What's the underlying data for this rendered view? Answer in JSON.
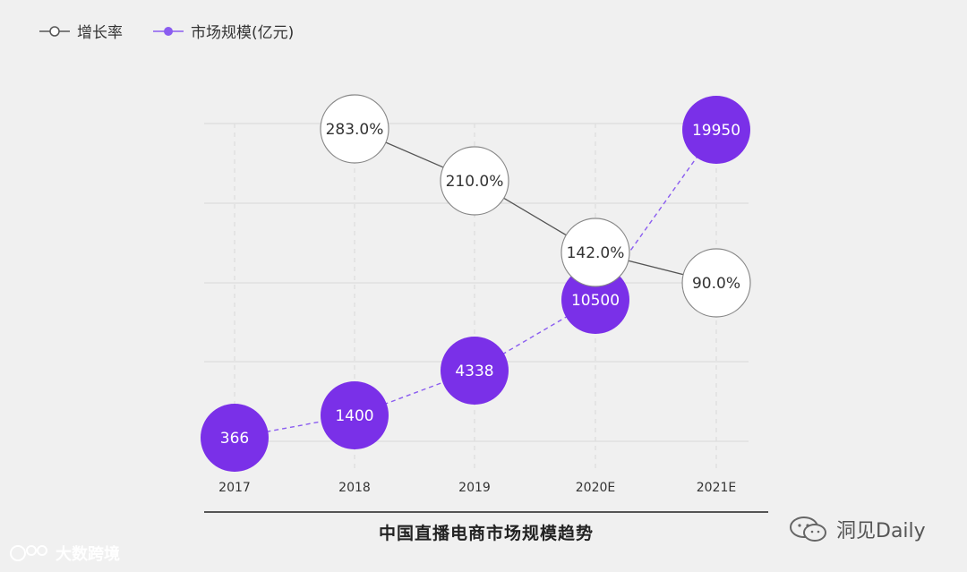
{
  "legend": {
    "growth_label": "增长率",
    "market_label": "市场规模(亿元)"
  },
  "caption": "中国直播电商市场规模趋势",
  "watermarks": {
    "bottom_right": "洞见Daily",
    "bottom_left": "大数跨境"
  },
  "colors": {
    "market": "#7a30e8",
    "growth_fill": "#ffffff",
    "growth_stroke": "#888888",
    "market_line": "#8a5cf0",
    "growth_line": "#555555",
    "grid": "#dddddd"
  },
  "chart_data": {
    "type": "line",
    "categories": [
      "2017",
      "2018",
      "2019",
      "2020E",
      "2021E"
    ],
    "series": [
      {
        "name": "增长率",
        "values": [
          null,
          283.0,
          210.0,
          142.0,
          90.0
        ],
        "labels": [
          "",
          "283.0%",
          "210.0%",
          "142.0%",
          "90.0%"
        ]
      },
      {
        "name": "市场规模(亿元)",
        "values": [
          366,
          1400,
          4338,
          10500,
          19950
        ],
        "labels": [
          "366",
          "1400",
          "4338",
          "10500",
          "19950"
        ]
      }
    ],
    "grid": true,
    "legend": "top-left"
  }
}
